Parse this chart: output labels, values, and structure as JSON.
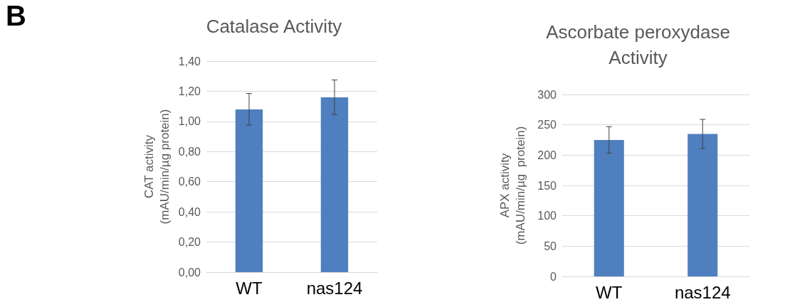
{
  "chart_data": [
    {
      "type": "bar",
      "title": "Catalase Activity",
      "ylabel": "CAT activity\n(mAU/min/µg protein)",
      "annotations": [
        "B"
      ],
      "categories": [
        "WT",
        "nas124"
      ],
      "series": [
        {
          "color": "#4f7fbe",
          "values": [
            1.08,
            1.16
          ],
          "errors": [
            0.105,
            0.115
          ]
        }
      ],
      "ylim": [
        0,
        1.4
      ],
      "yticks": [
        {
          "value": 0,
          "label": "0,00"
        },
        {
          "value": 0.2,
          "label": "0,20"
        },
        {
          "value": 0.4,
          "label": "0,40"
        },
        {
          "value": 0.6,
          "label": "0,60"
        },
        {
          "value": 0.8,
          "label": "0,80"
        },
        {
          "value": 1,
          "label": "1,00"
        },
        {
          "value": 1.2,
          "label": "1,20"
        },
        {
          "value": 1.4,
          "label": "1,40"
        }
      ],
      "grid": "y"
    },
    {
      "type": "bar",
      "title": "Ascorbate peroxydase\nActivity",
      "ylabel": "APX activity\n(mAU/min/µg  protein)",
      "categories": [
        "WT",
        "nas124"
      ],
      "series": [
        {
          "color": "#4f7fbe",
          "values": [
            225,
            235
          ],
          "errors": [
            22,
            24
          ]
        }
      ],
      "ylim": [
        0,
        300
      ],
      "yticks": [
        0,
        50,
        100,
        150,
        200,
        250,
        300
      ],
      "grid": "y"
    }
  ]
}
